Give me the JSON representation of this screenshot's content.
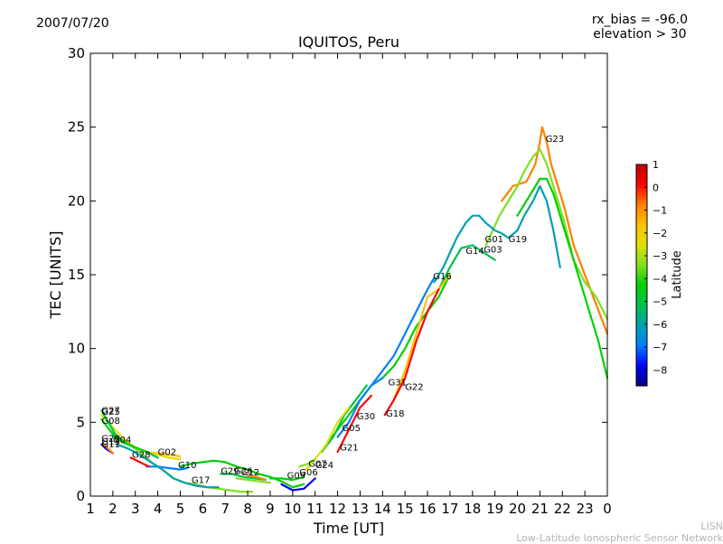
{
  "header": {
    "date": "2007/07/20",
    "rx_bias": "rx_bias = -96.0",
    "elevation": "elevation > 30"
  },
  "footer": {
    "line1": "LISN",
    "line2": "Low-Latitude Ionospheric Sensor Network"
  },
  "colors": {
    "colormap": [
      "#00007f",
      "#0000ff",
      "#0080ff",
      "#00a0b0",
      "#00c050",
      "#00d000",
      "#80e020",
      "#e0e000",
      "#ffc000",
      "#ff8000",
      "#ff0000",
      "#c00000"
    ]
  },
  "chart_data": {
    "type": "line",
    "title": "IQUITOS, Peru",
    "xlabel": "Time [UT]",
    "ylabel": "TEC [UNITS]",
    "xlim": [
      1,
      24
    ],
    "ylim": [
      0,
      30
    ],
    "xticks": [
      "1",
      "2",
      "3",
      "4",
      "5",
      "6",
      "7",
      "8",
      "9",
      "10",
      "11",
      "12",
      "13",
      "14",
      "15",
      "16",
      "17",
      "18",
      "19",
      "20",
      "21",
      "22",
      "23",
      "0"
    ],
    "yticks": [
      0,
      5,
      10,
      15,
      20,
      25,
      30
    ],
    "grid": false,
    "colorbar": {
      "label": "Latitude",
      "range": [
        -8.7,
        1
      ],
      "ticks": [
        "1",
        "0",
        "−1",
        "−2",
        "−3",
        "−4",
        "−5",
        "−6",
        "−7",
        "−8"
      ],
      "tick_values": [
        1,
        0,
        -1,
        -2,
        -3,
        -4,
        -5,
        -6,
        -7,
        -8
      ]
    },
    "series": [
      {
        "name": "G23",
        "lat": -0.5,
        "x": [
          19.3,
          19.8,
          20.4,
          20.8,
          21.0,
          21.1,
          21.3,
          21.5,
          21.8,
          22.1,
          22.5,
          23.0,
          23.5,
          24.0
        ],
        "y": [
          20.0,
          21.0,
          21.3,
          22.5,
          24.0,
          25.0,
          24.0,
          22.5,
          21.0,
          19.5,
          17.0,
          15.0,
          13.0,
          11.0
        ]
      },
      {
        "name": "G01",
        "lat": -3.5,
        "x": [
          18.6,
          18.9,
          19.2,
          19.6,
          20.0,
          20.3,
          20.7,
          21.0,
          21.3,
          21.5,
          21.8,
          22.1,
          22.5,
          23.0,
          23.5,
          24.0
        ],
        "y": [
          17.0,
          18.0,
          19.0,
          20.0,
          21.0,
          22.0,
          23.0,
          23.5,
          22.5,
          21.5,
          20.0,
          18.5,
          16.0,
          14.5,
          13.5,
          12.0
        ]
      },
      {
        "name": "G19",
        "lat": -4.5,
        "x": [
          20.0,
          20.4,
          20.8,
          21.0,
          21.3,
          21.6,
          21.9,
          22.2,
          22.5,
          22.8,
          23.2,
          23.6,
          24.0
        ],
        "y": [
          19.0,
          20.0,
          21.0,
          21.5,
          21.5,
          20.5,
          19.0,
          17.5,
          16.0,
          14.5,
          12.5,
          10.5,
          8.0
        ]
      },
      {
        "name": "G14",
        "lat": -6.0,
        "x": [
          16.3,
          16.7,
          17.0,
          17.3,
          17.7,
          18.0,
          18.3,
          18.6,
          19.0,
          19.3,
          19.6,
          20.0,
          20.3,
          20.7,
          21.0,
          21.3,
          21.6,
          21.9
        ],
        "y": [
          14.5,
          15.5,
          16.5,
          17.5,
          18.5,
          19.0,
          19.0,
          18.5,
          18.0,
          17.8,
          17.5,
          18.0,
          19.0,
          20.0,
          21.0,
          20.0,
          18.0,
          15.5
        ]
      },
      {
        "name": "G03",
        "lat": -5.0,
        "x": [
          16.5,
          17.0,
          17.5,
          18.0,
          18.5,
          19.0
        ],
        "y": [
          14.0,
          15.5,
          16.8,
          17.0,
          16.5,
          16.0
        ]
      },
      {
        "name": "G16",
        "lat": -7.0,
        "x": [
          13.5,
          14.0,
          14.5,
          15.0,
          15.5,
          16.0,
          16.3
        ],
        "y": [
          7.5,
          8.5,
          9.5,
          11.0,
          12.5,
          14.0,
          14.8
        ]
      },
      {
        "name": "G31",
        "lat": -4.2,
        "x": [
          11.5,
          12.0,
          12.5,
          13.0,
          13.5,
          14.0,
          14.5,
          15.0,
          15.5,
          16.0,
          16.5,
          17.0
        ],
        "y": [
          3.5,
          4.5,
          5.5,
          6.5,
          7.5,
          8.0,
          8.8,
          10.0,
          11.5,
          12.5,
          13.5,
          15.0
        ]
      },
      {
        "name": "G22",
        "lat": -1.5,
        "x": [
          14.5,
          15.0,
          15.5,
          16.0,
          16.5,
          17.0
        ],
        "y": [
          6.5,
          8.5,
          11.0,
          13.5,
          14.0,
          15.0
        ]
      },
      {
        "name": "G18",
        "lat": -0.3,
        "x": [
          14.1,
          14.5,
          15.0,
          15.5,
          16.0,
          16.5
        ],
        "y": [
          5.5,
          6.5,
          8.0,
          10.5,
          12.5,
          14.0
        ]
      },
      {
        "name": "G30",
        "lat": -6.5,
        "x": [
          12.0,
          12.5,
          13.0,
          13.5,
          14.0
        ],
        "y": [
          4.0,
          5.0,
          6.5,
          7.5,
          8.0
        ]
      },
      {
        "name": "G05",
        "lat": -5.5,
        "x": [
          11.3,
          11.8,
          12.3,
          12.8,
          13.3
        ],
        "y": [
          3.0,
          4.0,
          5.5,
          6.5,
          7.5
        ]
      },
      {
        "name": "G21",
        "lat": -0.2,
        "x": [
          12.0,
          12.5,
          13.0,
          13.5
        ],
        "y": [
          3.0,
          4.5,
          6.0,
          6.8
        ]
      },
      {
        "name": "G24",
        "lat": -2.5,
        "x": [
          10.6,
          11.0,
          11.5,
          12.0,
          12.5
        ],
        "y": [
          1.8,
          2.5,
          3.5,
          5.0,
          6.0
        ]
      },
      {
        "name": "G07",
        "lat": -3.0,
        "x": [
          10.3,
          10.7,
          11.0
        ],
        "y": [
          2.0,
          2.2,
          2.5
        ]
      },
      {
        "name": "G09",
        "lat": -4.5,
        "x": [
          9.0,
          9.5,
          10.0,
          10.5
        ],
        "y": [
          1.2,
          1.2,
          1.1,
          1.3
        ]
      },
      {
        "name": "G06",
        "lat": -7.5,
        "x": [
          9.5,
          10.0,
          10.5,
          11.0
        ],
        "y": [
          0.8,
          0.4,
          0.5,
          1.2
        ]
      },
      {
        "name": "G29",
        "lat": -5.5,
        "x": [
          6.8,
          7.3,
          7.8,
          8.3,
          8.8
        ],
        "y": [
          1.5,
          1.5,
          1.3,
          1.2,
          1.1
        ]
      },
      {
        "name": "G26",
        "lat": -3.8,
        "x": [
          7.5,
          8.0,
          8.5,
          9.0
        ],
        "y": [
          1.2,
          1.1,
          1.0,
          0.9
        ]
      },
      {
        "name": "G12",
        "lat": -1.0,
        "x": [
          8.0,
          8.4,
          8.8
        ],
        "y": [
          1.4,
          1.3,
          1.1
        ]
      },
      {
        "name": "G17",
        "lat": -4.0,
        "x": [
          5.0,
          5.5,
          6.0,
          6.5,
          7.0,
          7.5,
          8.0,
          8.5,
          9.0,
          9.5,
          10.0,
          10.5
        ],
        "y": [
          2.0,
          2.2,
          2.3,
          2.4,
          2.3,
          2.0,
          1.8,
          1.5,
          1.3,
          1.0,
          0.6,
          0.8
        ]
      },
      {
        "name": "G10",
        "lat": -6.5,
        "x": [
          3.5,
          4.0,
          4.5,
          5.0,
          5.3
        ],
        "y": [
          2.0,
          2.0,
          1.9,
          1.8,
          1.9
        ]
      },
      {
        "name": "G02",
        "lat": -1.7,
        "x": [
          3.5,
          4.0,
          4.5,
          5.0
        ],
        "y": [
          3.0,
          2.9,
          2.8,
          2.7
        ]
      },
      {
        "name": "G28",
        "lat": -0.3,
        "x": [
          2.8,
          3.2,
          3.6
        ],
        "y": [
          2.6,
          2.3,
          2.0
        ]
      },
      {
        "name": "G04",
        "lat": -3.5,
        "x": [
          2.2,
          2.7,
          3.2,
          3.7,
          4.2,
          4.7,
          5.2,
          5.7,
          6.2,
          6.7,
          7.2,
          7.7,
          8.2
        ],
        "y": [
          3.8,
          3.5,
          3.0,
          2.3,
          1.8,
          1.2,
          0.9,
          0.8,
          0.6,
          0.5,
          0.4,
          0.3,
          0.3
        ]
      },
      {
        "name": "G13",
        "lat": -6.0,
        "x": [
          2.2,
          2.7,
          3.2,
          3.7,
          4.2,
          4.7,
          5.2,
          5.7,
          6.2,
          6.7
        ],
        "y": [
          3.5,
          3.2,
          2.8,
          2.3,
          1.8,
          1.2,
          0.9,
          0.7,
          0.6,
          0.6
        ]
      },
      {
        "name": "G25",
        "lat": -2.5,
        "x": [
          1.5,
          1.8,
          2.1,
          2.4,
          2.7,
          3.0,
          3.5,
          4.0,
          4.5,
          5.0
        ],
        "y": [
          5.5,
          5.0,
          4.5,
          4.0,
          3.6,
          3.3,
          3.0,
          2.8,
          2.6,
          2.5
        ]
      },
      {
        "name": "G27",
        "lat": -5.0,
        "x": [
          1.5,
          1.8,
          2.1,
          2.4,
          2.7,
          3.0,
          3.5,
          4.0
        ],
        "y": [
          5.8,
          5.0,
          4.2,
          3.8,
          3.5,
          3.3,
          3.0,
          2.6
        ]
      },
      {
        "name": "G08",
        "lat": -4.2,
        "x": [
          1.5,
          1.8,
          2.1,
          2.5,
          3.0,
          3.5
        ],
        "y": [
          5.2,
          4.6,
          4.0,
          3.6,
          3.3,
          3.0
        ]
      },
      {
        "name": "G11",
        "lat": -7.5,
        "x": [
          1.5,
          1.7,
          1.9,
          2.0
        ],
        "y": [
          3.5,
          3.2,
          3.0,
          2.9
        ]
      },
      {
        "name": "G20",
        "lat": -0.6,
        "x": [
          1.6,
          1.8,
          2.0
        ],
        "y": [
          3.5,
          3.2,
          2.9
        ]
      }
    ],
    "labels": [
      {
        "text": "G23",
        "x": 21.25,
        "y": 24.0
      },
      {
        "text": "G01",
        "x": 18.55,
        "y": 17.2
      },
      {
        "text": "G19",
        "x": 19.6,
        "y": 17.2
      },
      {
        "text": "G14",
        "x": 17.7,
        "y": 16.4
      },
      {
        "text": "G03",
        "x": 18.5,
        "y": 16.5
      },
      {
        "text": "G16",
        "x": 16.25,
        "y": 14.7
      },
      {
        "text": "G31",
        "x": 14.25,
        "y": 7.5
      },
      {
        "text": "G22",
        "x": 15.0,
        "y": 7.2
      },
      {
        "text": "G18",
        "x": 14.15,
        "y": 5.4
      },
      {
        "text": "G30",
        "x": 12.85,
        "y": 5.2
      },
      {
        "text": "G05",
        "x": 12.2,
        "y": 4.4
      },
      {
        "text": "G21",
        "x": 12.1,
        "y": 3.1
      },
      {
        "text": "G07",
        "x": 10.7,
        "y": 2.0
      },
      {
        "text": "G24",
        "x": 11.0,
        "y": 1.9
      },
      {
        "text": "G09",
        "x": 9.75,
        "y": 1.2
      },
      {
        "text": "G06",
        "x": 10.3,
        "y": 1.4
      },
      {
        "text": "G29",
        "x": 6.8,
        "y": 1.5
      },
      {
        "text": "G26",
        "x": 7.4,
        "y": 1.5
      },
      {
        "text": "G12",
        "x": 7.7,
        "y": 1.4
      },
      {
        "text": "G17",
        "x": 5.5,
        "y": 0.9
      },
      {
        "text": "G10",
        "x": 4.9,
        "y": 1.9
      },
      {
        "text": "G02",
        "x": 4.0,
        "y": 2.8
      },
      {
        "text": "G28",
        "x": 2.85,
        "y": 2.6
      },
      {
        "text": "G04",
        "x": 2.0,
        "y": 3.6
      },
      {
        "text": "G13",
        "x": 1.5,
        "y": 3.5
      },
      {
        "text": "G20",
        "x": 1.5,
        "y": 3.7
      },
      {
        "text": "G11",
        "x": 1.5,
        "y": 3.3
      },
      {
        "text": "G08",
        "x": 1.5,
        "y": 4.9
      },
      {
        "text": "G25",
        "x": 1.5,
        "y": 5.5
      },
      {
        "text": "G27",
        "x": 1.5,
        "y": 5.6
      }
    ]
  }
}
